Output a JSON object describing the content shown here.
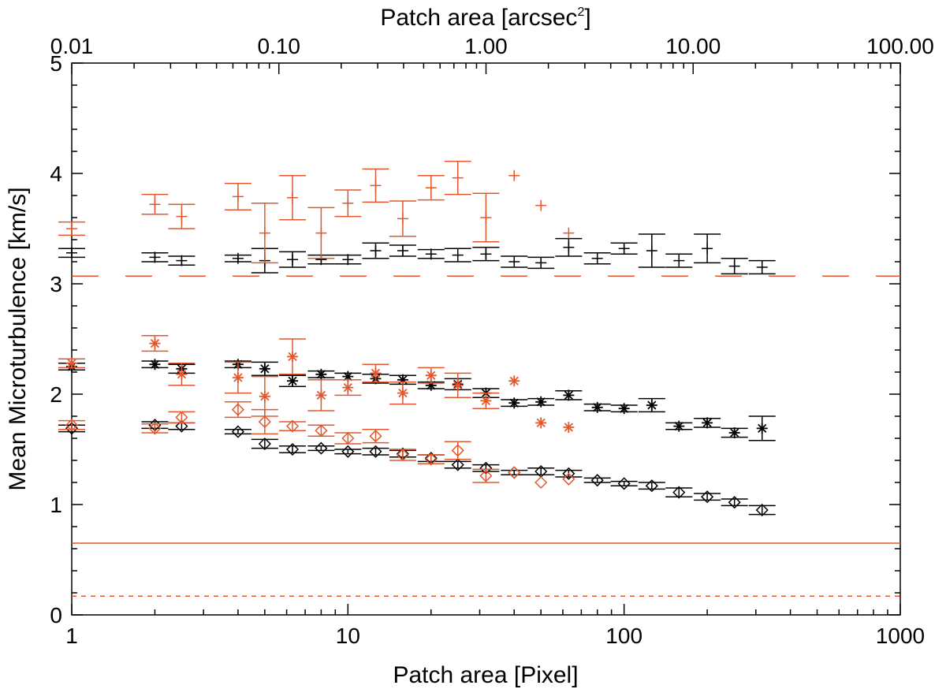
{
  "chart_data": {
    "type": "scatter",
    "title": "",
    "xlabel": "Patch area [Pixel]",
    "ylabel": "Mean Microturbulence [km/s]",
    "top_xlabel": "Patch area [arcsec",
    "top_xlabel_sup": "2",
    "top_xlabel_end": "]",
    "xscale": "log",
    "xlim": [
      1,
      1000
    ],
    "ylim": [
      0,
      5
    ],
    "x_ticks": [
      1,
      10,
      100,
      1000
    ],
    "x_tick_labels": [
      "1",
      "10",
      "100",
      "1000"
    ],
    "y_ticks": [
      0,
      1,
      2,
      3,
      4,
      5
    ],
    "y_tick_labels": [
      "0",
      "1",
      "2",
      "3",
      "4",
      "5"
    ],
    "top_xscale": "log",
    "top_xlim": [
      0.01,
      100
    ],
    "top_ticks": [
      0.01,
      0.1,
      1,
      10,
      100
    ],
    "top_tick_labels": [
      "0.01",
      "0.10",
      "1.00",
      "10.00",
      "100.00"
    ],
    "colors": {
      "black": "#000000",
      "orange": "#e2582e"
    },
    "reference_lines": [
      {
        "y": 3.07,
        "style": "long-dash",
        "color": "#e2582e"
      },
      {
        "y": 0.65,
        "style": "solid",
        "color": "#e2582e"
      },
      {
        "y": 0.17,
        "style": "short-dash",
        "color": "#e2582e"
      }
    ],
    "series": [
      {
        "color": "#000000",
        "marker": "plus",
        "x": [
          1,
          2,
          2.5,
          4,
          5,
          6.3,
          8,
          10,
          12.6,
          15.8,
          20,
          25,
          31.6,
          40,
          50,
          63,
          80,
          100,
          126,
          158,
          200,
          251,
          316
        ],
        "y": [
          3.28,
          3.24,
          3.21,
          3.23,
          3.21,
          3.22,
          3.22,
          3.22,
          3.3,
          3.3,
          3.27,
          3.26,
          3.27,
          3.2,
          3.19,
          3.33,
          3.23,
          3.32,
          3.3,
          3.21,
          3.32,
          3.16,
          3.15
        ],
        "err": [
          0.04,
          0.04,
          0.04,
          0.03,
          0.11,
          0.07,
          0.04,
          0.04,
          0.07,
          0.05,
          0.04,
          0.06,
          0.06,
          0.05,
          0.05,
          0.08,
          0.05,
          0.05,
          0.15,
          0.06,
          0.13,
          0.07,
          0.06
        ]
      },
      {
        "color": "#e2582e",
        "marker": "plus",
        "x": [
          1,
          2,
          2.5,
          4,
          5,
          6.3,
          8,
          10,
          12.6,
          15.8,
          20,
          25,
          31.6,
          40,
          50,
          63
        ],
        "y": [
          3.5,
          3.72,
          3.61,
          3.79,
          3.46,
          3.78,
          3.46,
          3.73,
          3.89,
          3.59,
          3.87,
          3.96,
          3.6,
          3.98,
          3.71,
          3.46
        ],
        "err": [
          0.06,
          0.09,
          0.11,
          0.12,
          0.27,
          0.2,
          0.23,
          0.12,
          0.15,
          0.16,
          0.11,
          0.15,
          0.22,
          0,
          0,
          0
        ]
      },
      {
        "color": "#000000",
        "marker": "asterisk",
        "x": [
          1,
          2,
          2.5,
          4,
          5,
          6.3,
          8,
          10,
          12.6,
          15.8,
          20,
          25,
          31.6,
          40,
          50,
          63,
          80,
          100,
          126,
          158,
          200,
          251,
          316
        ],
        "y": [
          2.25,
          2.27,
          2.23,
          2.27,
          2.23,
          2.12,
          2.18,
          2.16,
          2.14,
          2.13,
          2.08,
          2.09,
          2.01,
          1.92,
          1.93,
          1.99,
          1.88,
          1.87,
          1.9,
          1.71,
          1.74,
          1.65,
          1.69
        ],
        "err": [
          0.03,
          0.03,
          0.04,
          0.03,
          0.06,
          0.05,
          0.03,
          0.03,
          0.04,
          0.04,
          0.03,
          0.05,
          0.04,
          0.03,
          0.03,
          0.04,
          0.03,
          0.03,
          0.06,
          0.03,
          0.04,
          0.04,
          0.11
        ]
      },
      {
        "color": "#e2582e",
        "marker": "asterisk",
        "x": [
          1,
          2,
          2.5,
          4,
          5,
          6.3,
          8,
          10,
          12.6,
          15.8,
          20,
          25,
          31.6,
          40,
          50,
          63
        ],
        "y": [
          2.28,
          2.46,
          2.18,
          2.15,
          1.98,
          2.34,
          1.99,
          2.06,
          2.19,
          2.01,
          2.17,
          2.08,
          1.94,
          2.12,
          1.74,
          1.7
        ],
        "err": [
          0.04,
          0.07,
          0.1,
          0.14,
          0.18,
          0.16,
          0.14,
          0.07,
          0.08,
          0.1,
          0.07,
          0.11,
          0.07,
          0,
          0,
          0
        ]
      },
      {
        "color": "#000000",
        "marker": "diamond",
        "x": [
          1,
          2,
          2.5,
          4,
          5,
          6.3,
          8,
          10,
          12.6,
          15.8,
          20,
          25,
          31.6,
          40,
          50,
          63,
          80,
          100,
          126,
          158,
          200,
          251,
          316
        ],
        "y": [
          1.69,
          1.72,
          1.71,
          1.66,
          1.55,
          1.5,
          1.51,
          1.48,
          1.48,
          1.46,
          1.42,
          1.36,
          1.33,
          1.29,
          1.3,
          1.28,
          1.22,
          1.19,
          1.17,
          1.11,
          1.07,
          1.02,
          0.95
        ],
        "err": [
          0.03,
          0.03,
          0.03,
          0.02,
          0.04,
          0.03,
          0.02,
          0.02,
          0.03,
          0.03,
          0.03,
          0.03,
          0.03,
          0.02,
          0.03,
          0.03,
          0.02,
          0.02,
          0.03,
          0.04,
          0.03,
          0.03,
          0.04
        ]
      },
      {
        "color": "#e2582e",
        "marker": "diamond",
        "x": [
          1,
          2,
          2.5,
          4,
          5,
          6.3,
          8,
          10,
          12.6,
          15.8,
          20,
          25,
          31.6,
          40,
          50,
          63
        ],
        "y": [
          1.72,
          1.69,
          1.79,
          1.86,
          1.75,
          1.71,
          1.67,
          1.6,
          1.62,
          1.45,
          1.41,
          1.49,
          1.26,
          1.29,
          1.2,
          1.23
        ],
        "err": [
          0.04,
          0.04,
          0.05,
          0.07,
          0.11,
          0.04,
          0.05,
          0.05,
          0.06,
          0.05,
          0.04,
          0.08,
          0.06,
          0,
          0,
          0
        ]
      }
    ]
  }
}
